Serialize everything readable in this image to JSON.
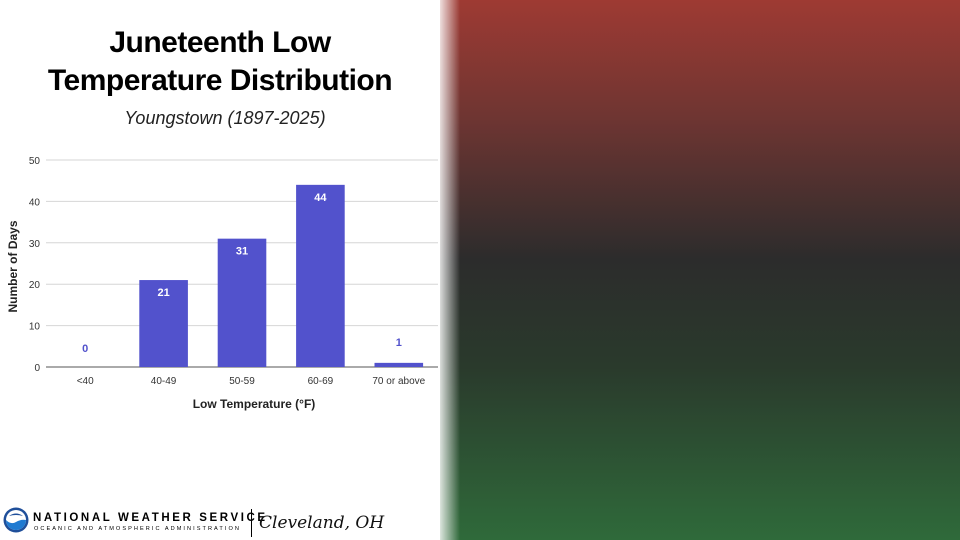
{
  "slide": {
    "title_line1": "Juneteenth Low",
    "title_line2": "Temperature Distribution",
    "subtitle": "Youngstown (1897-2025)"
  },
  "footer": {
    "agency": "NATIONAL WEATHER SERVICE",
    "agency_sub": "OCEANIC AND ATMOSPHERIC ADMINISTRATION",
    "office": "Cleveland, OH",
    "logo_icon": "noaa-logo-icon"
  },
  "colors": {
    "bar": "#5252cc",
    "bar_label_inside": "#ffffff",
    "bar_label_outside": "#5252cc",
    "gradient_top": "#9e3a33",
    "gradient_middle": "#2c2c2c",
    "gradient_bottom": "#2f6a3a"
  },
  "chart_data": {
    "type": "bar",
    "categories": [
      "<40",
      "40-49",
      "50-59",
      "60-69",
      "70 or above"
    ],
    "values": [
      0,
      21,
      31,
      44,
      1
    ],
    "xlabel": "Low Temperature (°F)",
    "ylabel": "Number of Days",
    "ylim": [
      0,
      50
    ],
    "yticks": [
      0,
      10,
      20,
      30,
      40,
      50
    ],
    "grid": true,
    "legend": "none"
  }
}
